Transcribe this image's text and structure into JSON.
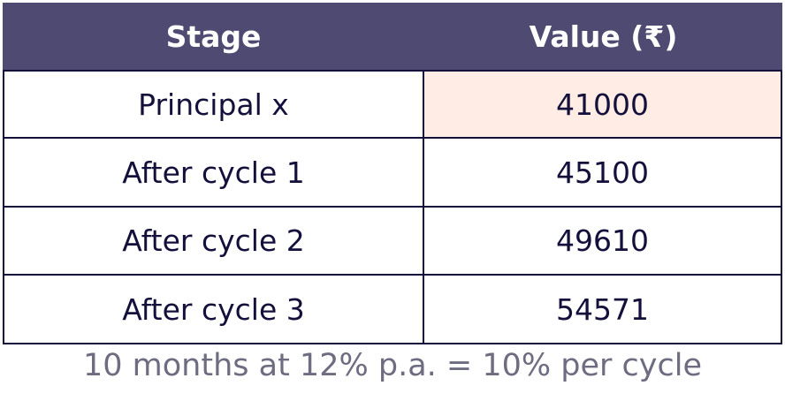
{
  "table": {
    "header": [
      "Stage",
      "Value (₹)"
    ],
    "rows": [
      [
        "Principal x",
        "41000"
      ],
      [
        "After cycle 1",
        "45100"
      ],
      [
        "After cycle 2",
        "49610"
      ],
      [
        "After cycle 3",
        "54571"
      ]
    ]
  },
  "caption": "10 months at 12% p.a. = 10% per cycle"
}
